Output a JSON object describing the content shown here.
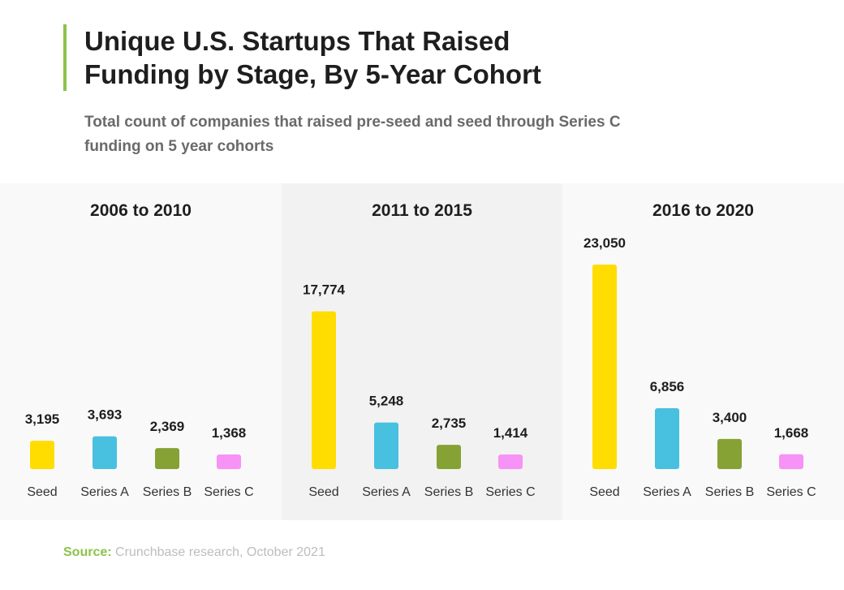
{
  "title": "Unique U.S. Startups That Raised Funding by Stage, By 5-Year Cohort",
  "subtitle": "Total count of companies that raised pre-seed and seed through Series C funding on 5 year cohorts",
  "source": {
    "label": "Source:",
    "text": "Crunchbase research, October 2021"
  },
  "colors": {
    "Seed": "#ffdd00",
    "Series A": "#48c0e0",
    "Series B": "#86a235",
    "Series C": "#f792f7",
    "accent": "#8bc34a",
    "panel_bg_light": "#f9f9f9",
    "panel_bg_dark": "#f2f2f2"
  },
  "chart_data": [
    {
      "type": "bar",
      "title": "2006 to 2010",
      "categories": [
        "Seed",
        "Series A",
        "Series B",
        "Series C"
      ],
      "values": [
        3195,
        3693,
        2369,
        1368
      ],
      "value_labels": [
        "3,195",
        "3,693",
        "2,369",
        "1,368"
      ]
    },
    {
      "type": "bar",
      "title": "2011 to 2015",
      "categories": [
        "Seed",
        "Series A",
        "Series B",
        "Series C"
      ],
      "values": [
        17774,
        5248,
        2735,
        1414
      ],
      "value_labels": [
        "17,774",
        "5,248",
        "2,735",
        "1,414"
      ]
    },
    {
      "type": "bar",
      "title": "2016 to 2020",
      "categories": [
        "Seed",
        "Series A",
        "Series B",
        "Series C"
      ],
      "values": [
        23050,
        6856,
        3400,
        1668
      ],
      "value_labels": [
        "23,050",
        "6,856",
        "3,400",
        "1,668"
      ]
    }
  ]
}
